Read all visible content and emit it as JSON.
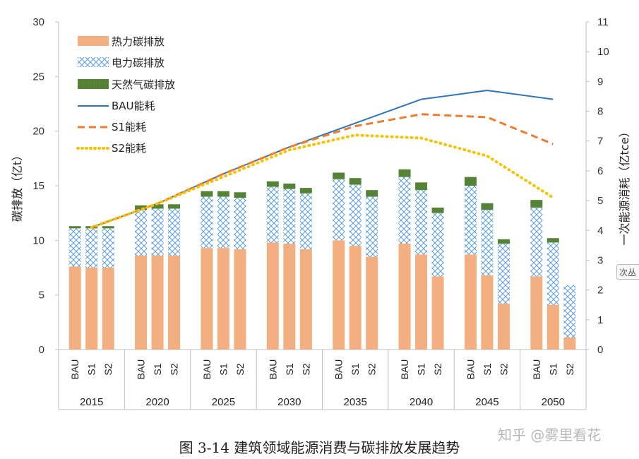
{
  "chart_data": {
    "type": "bar",
    "ylabel_left": "碳排放（亿t）",
    "ylabel_right": "一次能源消耗（亿tce）",
    "ylim_left": [
      0,
      30
    ],
    "ylim_right": [
      0,
      11
    ],
    "left_ticks": [
      "0",
      "5",
      "10",
      "15",
      "20",
      "25",
      "30"
    ],
    "right_ticks": [
      "0",
      "1",
      "2",
      "3",
      "4",
      "5",
      "6",
      "7",
      "8",
      "9",
      "10",
      "11"
    ],
    "years": [
      "2015",
      "2020",
      "2025",
      "2030",
      "2035",
      "2040",
      "2045",
      "2050"
    ],
    "scenarios": [
      "BAU",
      "S1",
      "S2"
    ],
    "series": [
      {
        "name": "热力碳排放",
        "color": "#f4b183",
        "values": [
          [
            7.6,
            7.5,
            7.5
          ],
          [
            8.6,
            8.6,
            8.6
          ],
          [
            9.3,
            9.3,
            9.2
          ],
          [
            9.8,
            9.7,
            9.2
          ],
          [
            10.0,
            9.5,
            8.5
          ],
          [
            9.7,
            8.7,
            6.7
          ],
          [
            8.7,
            6.8,
            4.2
          ],
          [
            6.7,
            4.1,
            1.1
          ]
        ]
      },
      {
        "name": "电力碳排放",
        "color": "#5b9bd5",
        "values": [
          [
            3.5,
            3.6,
            3.6
          ],
          [
            4.2,
            4.3,
            4.3
          ],
          [
            4.7,
            4.7,
            4.7
          ],
          [
            5.1,
            5.0,
            5.1
          ],
          [
            5.6,
            5.6,
            5.5
          ],
          [
            6.1,
            5.9,
            5.8
          ],
          [
            6.3,
            6.0,
            5.5
          ],
          [
            6.3,
            5.7,
            4.8
          ]
        ]
      },
      {
        "name": "天然气碳排放",
        "color": "#548235",
        "values": [
          [
            0.2,
            0.2,
            0.2
          ],
          [
            0.4,
            0.4,
            0.4
          ],
          [
            0.5,
            0.5,
            0.5
          ],
          [
            0.5,
            0.5,
            0.5
          ],
          [
            0.6,
            0.6,
            0.6
          ],
          [
            0.7,
            0.7,
            0.5
          ],
          [
            0.8,
            0.6,
            0.4
          ],
          [
            0.7,
            0.4,
            0.0
          ]
        ]
      }
    ],
    "lines": [
      {
        "name": "BAU能耗",
        "color": "#2e75b6",
        "style": "solid",
        "values": [
          4.1,
          4.9,
          5.9,
          6.8,
          7.6,
          8.4,
          8.7,
          8.4
        ]
      },
      {
        "name": "S1能耗",
        "color": "#ed7d31",
        "style": "dashed",
        "values": [
          4.1,
          4.9,
          5.9,
          6.8,
          7.5,
          7.9,
          7.8,
          6.9
        ]
      },
      {
        "name": "S2能耗",
        "color": "#f5c400",
        "style": "dotted",
        "values": [
          4.1,
          4.9,
          5.8,
          6.7,
          7.2,
          7.1,
          6.5,
          5.1
        ]
      }
    ],
    "legend_position": "top-left",
    "grid": false
  },
  "caption": "图 3-14 建筑领域能源消费与碳排放发展趋势",
  "watermark": "知乎 @雾里看花",
  "side_button": "次丛"
}
